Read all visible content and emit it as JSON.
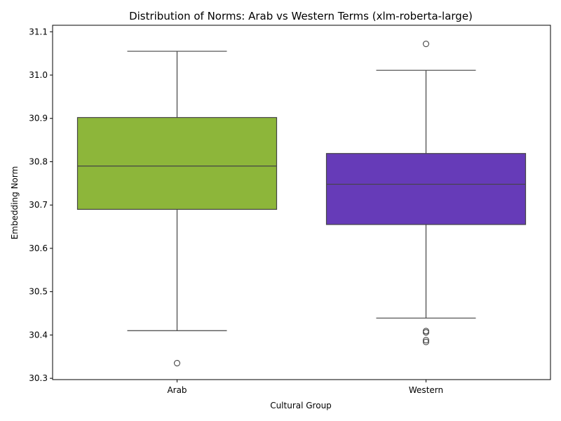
{
  "chart_data": {
    "type": "box",
    "title": "Distribution of Norms: Arab vs Western Terms (xlm-roberta-large)",
    "xlabel": "Cultural Group",
    "ylabel": "Embedding Norm",
    "categories": [
      "Arab",
      "Western"
    ],
    "ylim": [
      30.297,
      31.115
    ],
    "yticks": [
      "30.3",
      "30.4",
      "30.5",
      "30.6",
      "30.7",
      "30.8",
      "30.9",
      "31.0",
      "31.1"
    ],
    "ytick_values": [
      30.3,
      30.4,
      30.5,
      30.6,
      30.7,
      30.8,
      30.9,
      31.0,
      31.1
    ],
    "grid": false,
    "series": [
      {
        "category": "Arab",
        "color": "#8db63a",
        "whisker_low": 30.41,
        "q1": 30.69,
        "median": 30.79,
        "q3": 30.902,
        "whisker_high": 31.055,
        "outliers": [
          30.335
        ]
      },
      {
        "category": "Western",
        "color": "#663bb8",
        "whisker_low": 30.439,
        "q1": 30.655,
        "median": 30.748,
        "q3": 30.819,
        "whisker_high": 31.011,
        "outliers": [
          31.072,
          30.406,
          30.409,
          30.388,
          30.384
        ]
      }
    ]
  }
}
